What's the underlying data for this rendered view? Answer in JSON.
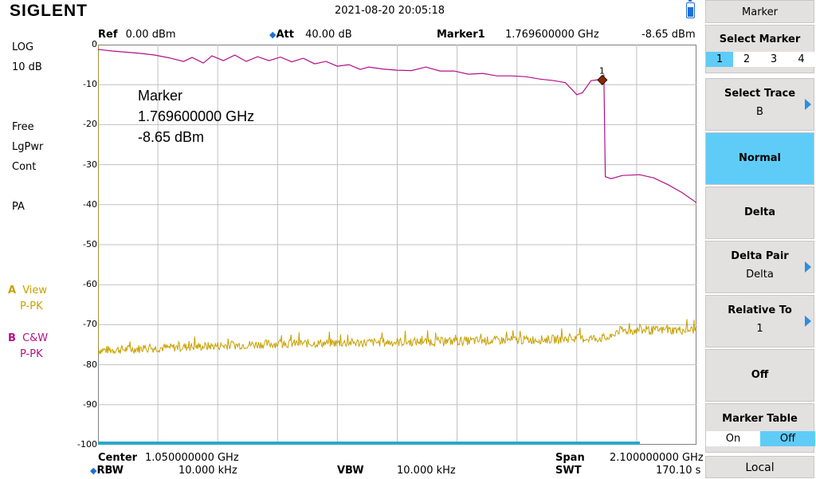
{
  "header": {
    "brand": "SIGLENT",
    "datetime": "2021-08-20   20:05:18"
  },
  "left_panel": {
    "scale_type": "LOG",
    "scale_div": "10 dB",
    "sweep_mode": "Free",
    "avg_type": "LgPwr",
    "trigger": "Cont",
    "preamp": "PA",
    "trace_a_letter": "A",
    "trace_a_mode": "View",
    "trace_a_det": "P-PK",
    "trace_b_letter": "B",
    "trace_b_mode": "C&W",
    "trace_b_det": "P-PK"
  },
  "top_bar": {
    "ref_label": "Ref",
    "ref_value": "0.00 dBm",
    "att_label": "Att",
    "att_value": "40.00 dB",
    "marker_label": "Marker1",
    "marker_freq": "1.769600000 GHz",
    "marker_level": "-8.65 dBm"
  },
  "bottom_bar": {
    "center_label": "Center",
    "center_value": "1.050000000 GHz",
    "span_label": "Span",
    "span_value": "2.100000000 GHz",
    "rbw_label": "RBW",
    "rbw_value": "10.000 kHz",
    "vbw_label": "VBW",
    "vbw_value": "10.000 kHz",
    "swt_label": "SWT",
    "swt_value": "170.10 s"
  },
  "graph_annotation": {
    "title": "Marker",
    "freq": "1.769600000 GHz",
    "level": "-8.65 dBm"
  },
  "marker_point": {
    "id": "1",
    "freq_ghz": 1.7696,
    "level_dbm": -8.65
  },
  "y_ticks": [
    "0",
    "-10",
    "-20",
    "-30",
    "-40",
    "-50",
    "-60",
    "-70",
    "-80",
    "-90",
    "-100"
  ],
  "colors": {
    "trace_a": "#c8a000",
    "trace_b": "#b0108a",
    "grid": "#c0c0c0",
    "accent": "#5fccf7",
    "marker": "#8b2500"
  },
  "trace_b_points": [
    [
      0,
      -1.2
    ],
    [
      0.05,
      -1.6
    ],
    [
      0.1,
      -1.9
    ],
    [
      0.15,
      -2.2
    ],
    [
      0.2,
      -2.6
    ],
    [
      0.25,
      -3.3
    ],
    [
      0.3,
      -4.2
    ],
    [
      0.33,
      -3.2
    ],
    [
      0.37,
      -4.6
    ],
    [
      0.4,
      -2.8
    ],
    [
      0.44,
      -4.0
    ],
    [
      0.48,
      -2.6
    ],
    [
      0.52,
      -4.2
    ],
    [
      0.56,
      -3.0
    ],
    [
      0.6,
      -4.0
    ],
    [
      0.64,
      -3.1
    ],
    [
      0.68,
      -4.3
    ],
    [
      0.72,
      -3.4
    ],
    [
      0.76,
      -4.8
    ],
    [
      0.8,
      -4.2
    ],
    [
      0.84,
      -5.4
    ],
    [
      0.88,
      -5.0
    ],
    [
      0.92,
      -6.2
    ],
    [
      0.95,
      -5.6
    ],
    [
      1.0,
      -6.1
    ],
    [
      1.05,
      -6.4
    ],
    [
      1.1,
      -6.5
    ],
    [
      1.15,
      -5.6
    ],
    [
      1.2,
      -6.6
    ],
    [
      1.25,
      -6.6
    ],
    [
      1.3,
      -7.4
    ],
    [
      1.35,
      -7.2
    ],
    [
      1.4,
      -7.8
    ],
    [
      1.45,
      -7.8
    ],
    [
      1.5,
      -8.0
    ],
    [
      1.55,
      -8.6
    ],
    [
      1.6,
      -9.0
    ],
    [
      1.64,
      -9.5
    ],
    [
      1.68,
      -12.5
    ],
    [
      1.7,
      -12.0
    ],
    [
      1.73,
      -9.0
    ],
    [
      1.7696,
      -8.65
    ],
    [
      1.775,
      -7.5
    ],
    [
      1.78,
      -33.0
    ],
    [
      1.8,
      -33.5
    ],
    [
      1.84,
      -32.7
    ],
    [
      1.87,
      -32.6
    ],
    [
      1.9,
      -32.5
    ],
    [
      1.95,
      -33.3
    ],
    [
      2.0,
      -35.0
    ],
    [
      2.05,
      -37.0
    ],
    [
      2.1,
      -39.5
    ]
  ],
  "trace_a_baseline": [
    [
      0,
      -76.4
    ],
    [
      0.3,
      -75.6
    ],
    [
      0.6,
      -74.8
    ],
    [
      0.9,
      -74.5
    ],
    [
      1.2,
      -74.2
    ],
    [
      1.5,
      -73.8
    ],
    [
      1.8,
      -73.3
    ],
    [
      1.82,
      -71.5
    ],
    [
      2.1,
      -71.3
    ]
  ]
}
